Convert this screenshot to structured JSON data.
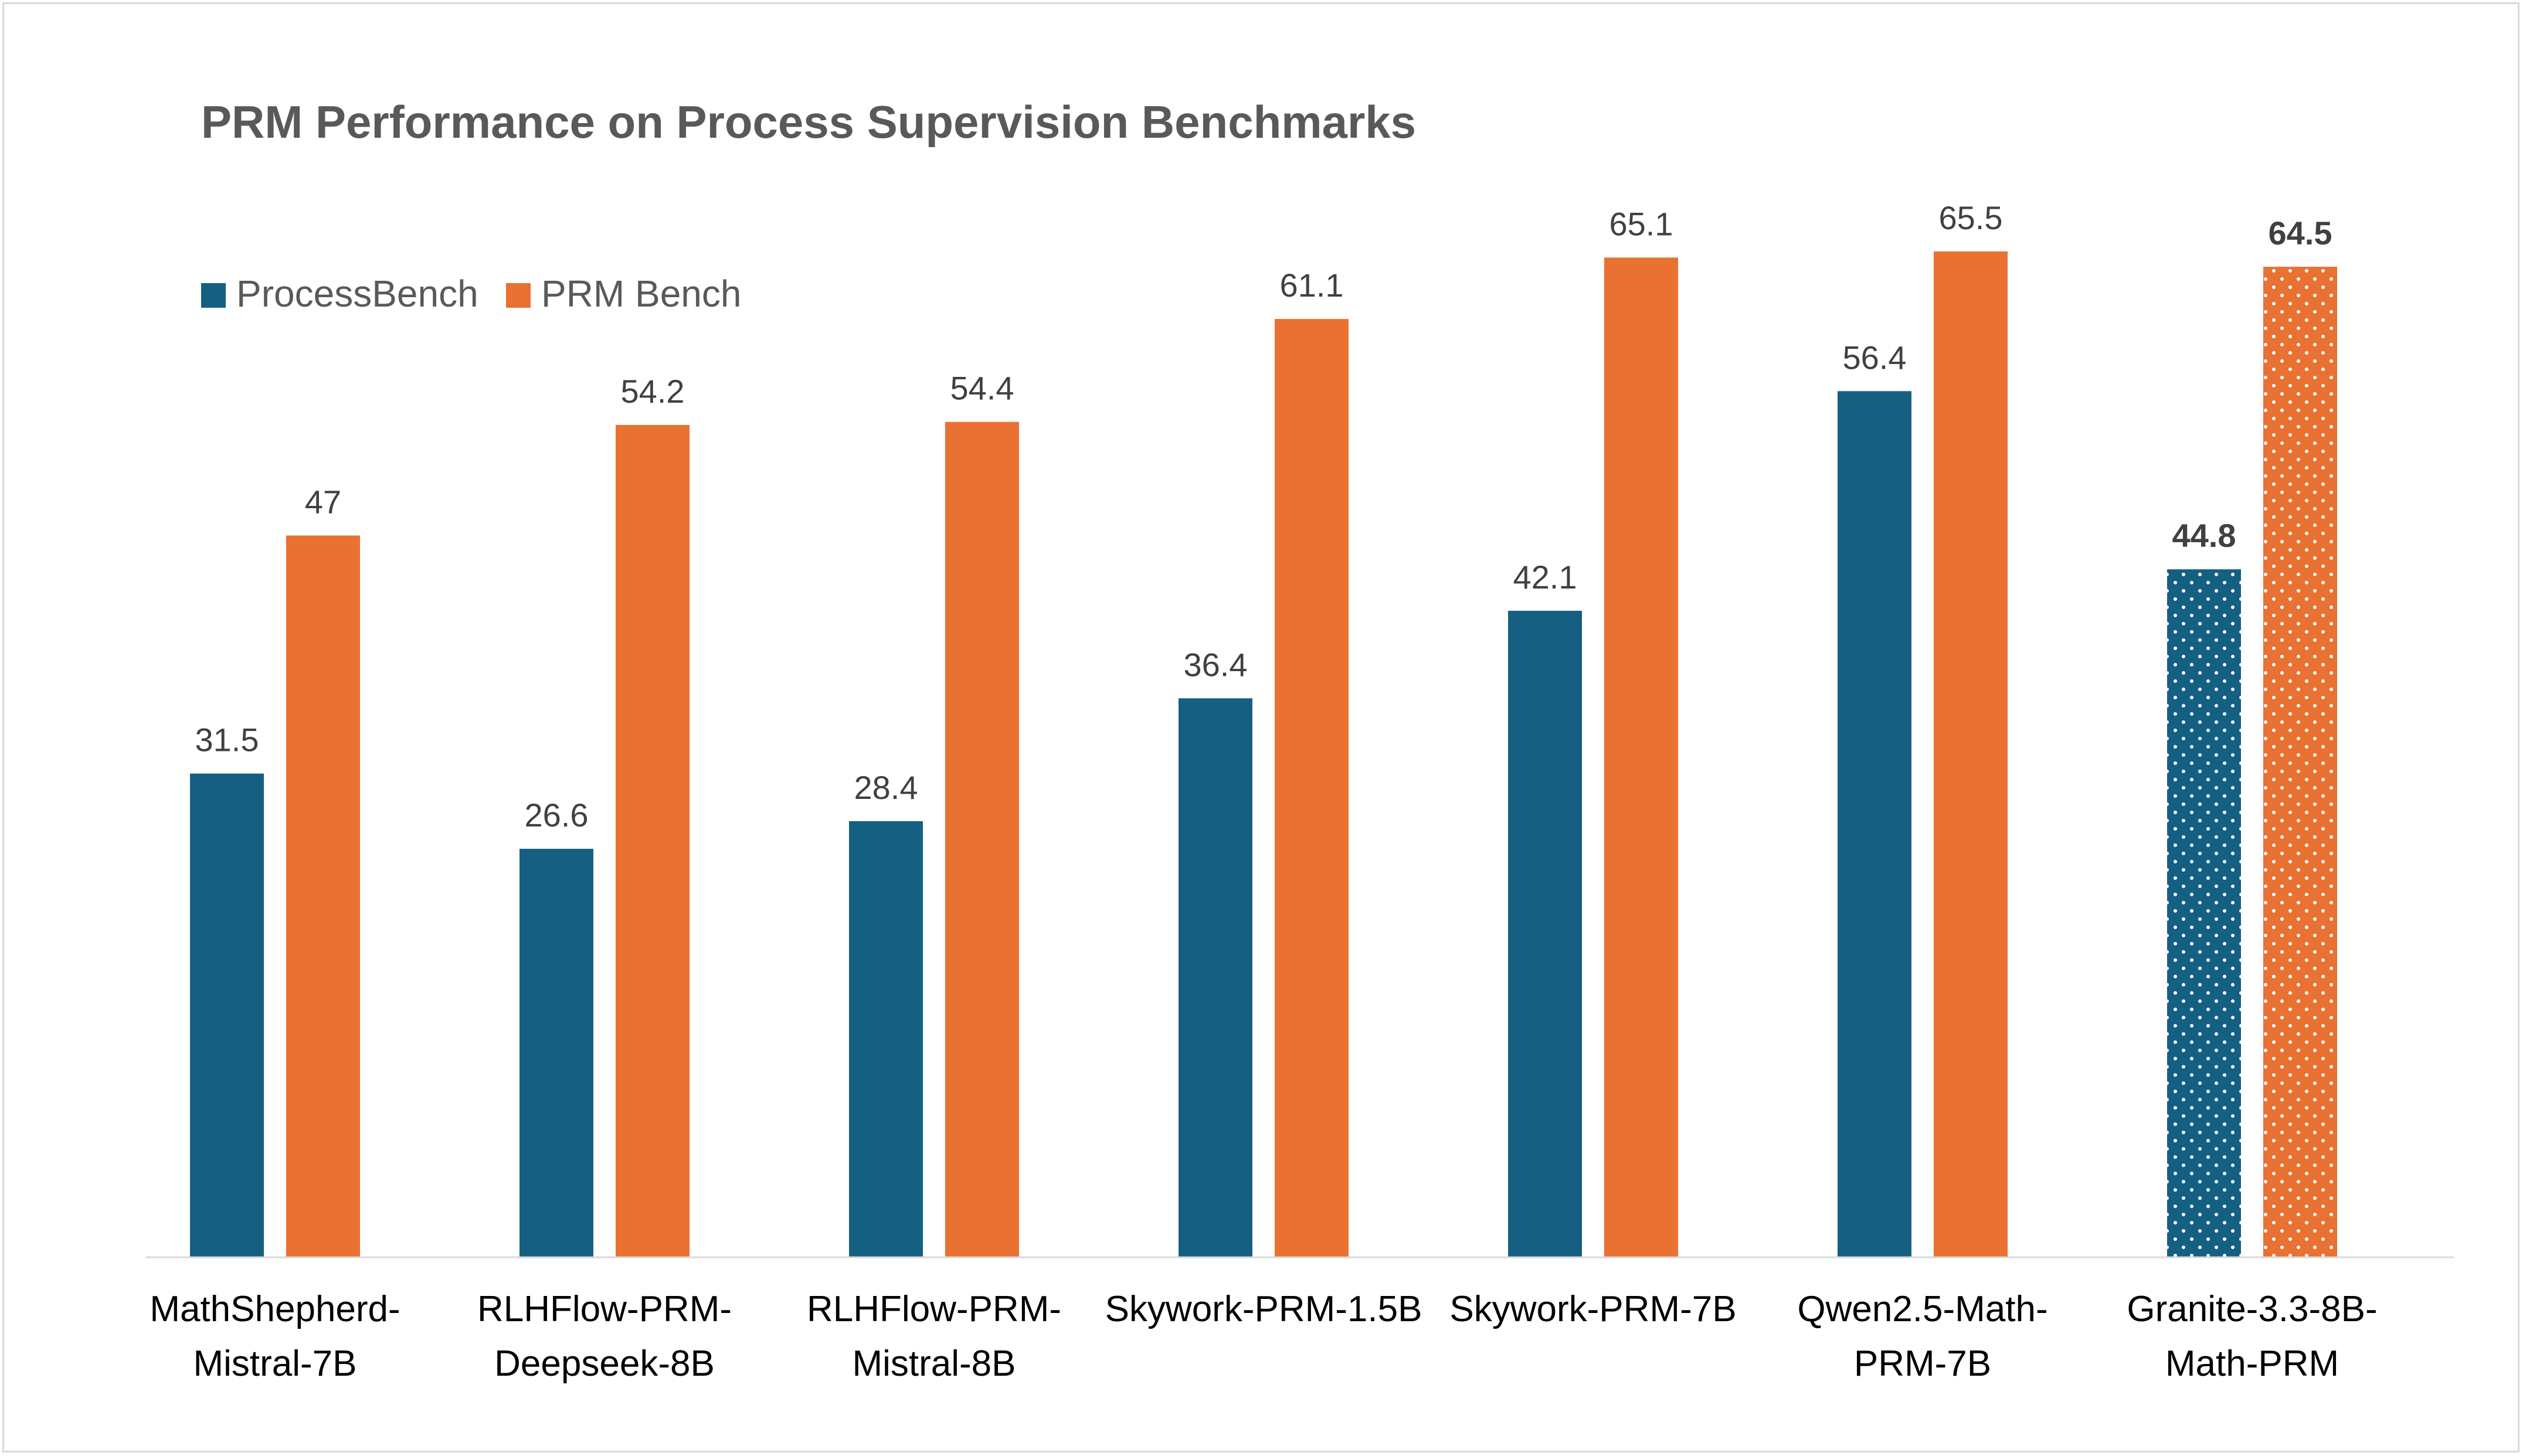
{
  "chart_data": {
    "type": "bar",
    "title": "PRM Performance on Process Supervision Benchmarks",
    "categories": [
      [
        "MathShepherd-",
        "Mistral-7B"
      ],
      [
        "RLHFlow-PRM-",
        "Deepseek-8B"
      ],
      [
        "RLHFlow-PRM-",
        "Mistral-8B"
      ],
      [
        "Skywork-PRM-1.5B"
      ],
      [
        "Skywork-PRM-7B"
      ],
      [
        "Qwen2.5-Math-",
        "PRM-7B"
      ],
      [
        "Granite-3.3-8B-",
        "Math-PRM"
      ]
    ],
    "series": [
      {
        "name": "ProcessBench",
        "color": "#156082",
        "values": [
          31.5,
          26.6,
          28.4,
          36.4,
          42.1,
          56.4,
          44.8
        ],
        "labels": [
          "31.5",
          "26.6",
          "28.4",
          "36.4",
          "42.1",
          "56.4",
          "44.8"
        ]
      },
      {
        "name": "PRM Bench",
        "color": "#E97132",
        "values": [
          47,
          54.2,
          54.4,
          61.1,
          65.1,
          65.5,
          64.5
        ],
        "labels": [
          "47",
          "54.2",
          "54.4",
          "61.1",
          "65.1",
          "65.5",
          "64.5"
        ]
      }
    ],
    "highlight_category_index": 6,
    "highlight_style": "dotted",
    "legend_position": "top-left",
    "xlabel": "",
    "ylabel": "",
    "ylim": [
      0,
      70
    ],
    "grid": false
  }
}
